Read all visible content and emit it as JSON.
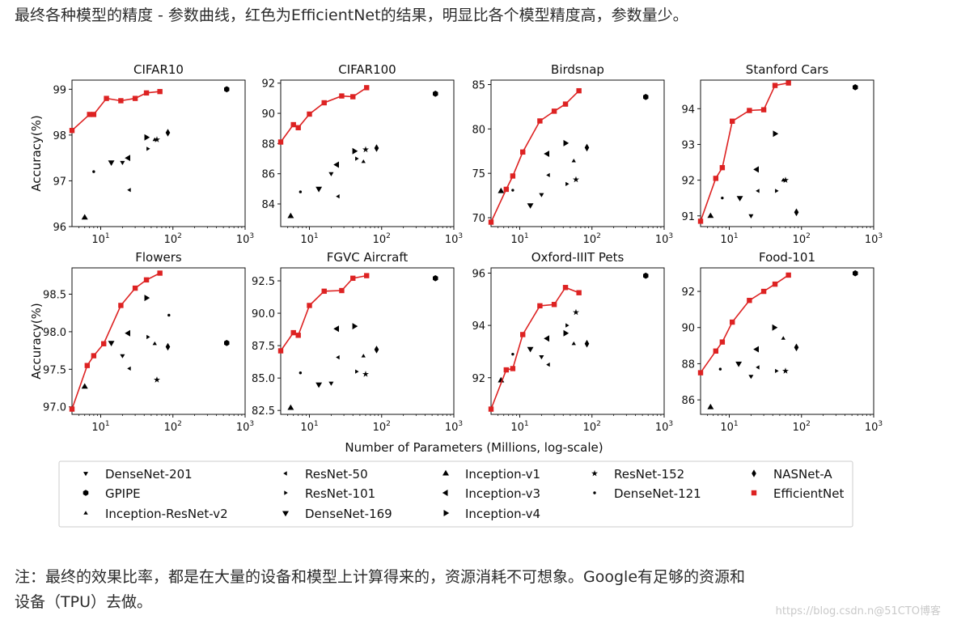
{
  "text": {
    "intro": "最终各种模型的精度 - 参数曲线，红色为EfficientNet的结果，明显比各个模型精度高，参数量少。",
    "note_line1": "注：最终的效果比率，都是在大量的设备和模型上计算得来的，资源消耗不可想象。Google有足够的资源和",
    "note_line2": "设备（TPU）去做。",
    "watermark": "https://blog.csdn.n@51CTO博客"
  },
  "figure": {
    "xlabel": "Number of Parameters (Millions, log-scale)",
    "ylabel": "Accuracy(%)",
    "x_tick_labels": [
      "10^1",
      "10^2",
      "10^3"
    ],
    "efficientnet_color": "#dd2222",
    "other_color": "#000000"
  },
  "legend": [
    {
      "name": "DenseNet-201",
      "marker": "tri_down"
    },
    {
      "name": "ResNet-50",
      "marker": "tri_left_small"
    },
    {
      "name": "Inception-v1",
      "marker": "tri_up"
    },
    {
      "name": "ResNet-152",
      "marker": "star"
    },
    {
      "name": "NASNet-A",
      "marker": "thin_diamond"
    },
    {
      "name": "GPIPE",
      "marker": "hexagon"
    },
    {
      "name": "ResNet-101",
      "marker": "tri_right_small"
    },
    {
      "name": "Inception-v3",
      "marker": "tri_left"
    },
    {
      "name": "DenseNet-121",
      "marker": "point"
    },
    {
      "name": "EfficientNet",
      "marker": "square"
    },
    {
      "name": "Inception-ResNet-v2",
      "marker": "tri_up_small"
    },
    {
      "name": "DenseNet-169",
      "marker": "tri_down_big"
    },
    {
      "name": "Inception-v4",
      "marker": "tri_right"
    }
  ],
  "chart_data": [
    {
      "type": "scatter",
      "title": "CIFAR10",
      "xscale": "log",
      "xlim": [
        4,
        1000
      ],
      "ylim": [
        96,
        99.2
      ],
      "yticks": [
        96,
        97,
        98,
        99
      ],
      "ytick_labels": [
        "96",
        "97",
        "98",
        "99"
      ],
      "efficientnet": [
        [
          4,
          98.1
        ],
        [
          7,
          98.45
        ],
        [
          8,
          98.45
        ],
        [
          12,
          98.8
        ],
        [
          19,
          98.75
        ],
        [
          30,
          98.8
        ],
        [
          43,
          98.92
        ],
        [
          66,
          98.95
        ]
      ],
      "others": [
        {
          "model": "DenseNet-201",
          "x": 20,
          "y": 97.4
        },
        {
          "model": "ResNet-50",
          "x": 25,
          "y": 96.8
        },
        {
          "model": "Inception-v1",
          "x": 6,
          "y": 96.2
        },
        {
          "model": "ResNet-152",
          "x": 60,
          "y": 97.9
        },
        {
          "model": "NASNet-A",
          "x": 85,
          "y": 98.05
        },
        {
          "model": "GPIPE",
          "x": 556,
          "y": 99.0
        },
        {
          "model": "ResNet-101",
          "x": 45,
          "y": 97.7
        },
        {
          "model": "Inception-v3",
          "x": 24,
          "y": 97.5
        },
        {
          "model": "DenseNet-121",
          "x": 8,
          "y": 97.2
        },
        {
          "model": "Inception-ResNet-v2",
          "x": 56,
          "y": 97.9
        },
        {
          "model": "DenseNet-169",
          "x": 14,
          "y": 97.4
        },
        {
          "model": "Inception-v4",
          "x": 43,
          "y": 97.95
        }
      ]
    },
    {
      "type": "scatter",
      "title": "CIFAR100",
      "xscale": "log",
      "xlim": [
        4,
        1000
      ],
      "ylim": [
        82.5,
        92.2
      ],
      "yticks": [
        84,
        86,
        88,
        90,
        92
      ],
      "ytick_labels": [
        "84",
        "86",
        "88",
        "90",
        "92"
      ],
      "efficientnet": [
        [
          4,
          88.1
        ],
        [
          6,
          89.25
        ],
        [
          7,
          89.05
        ],
        [
          10,
          89.95
        ],
        [
          16,
          90.7
        ],
        [
          28,
          91.15
        ],
        [
          40,
          91.1
        ],
        [
          62,
          91.7
        ]
      ],
      "others": [
        {
          "model": "DenseNet-201",
          "x": 20,
          "y": 86.0
        },
        {
          "model": "ResNet-50",
          "x": 25,
          "y": 84.5
        },
        {
          "model": "Inception-v1",
          "x": 5.5,
          "y": 83.2
        },
        {
          "model": "ResNet-152",
          "x": 60,
          "y": 87.6
        },
        {
          "model": "NASNet-A",
          "x": 85,
          "y": 87.7
        },
        {
          "model": "GPIPE",
          "x": 556,
          "y": 91.3
        },
        {
          "model": "ResNet-101",
          "x": 45,
          "y": 87.0
        },
        {
          "model": "Inception-v3",
          "x": 24,
          "y": 86.6
        },
        {
          "model": "DenseNet-121",
          "x": 7.5,
          "y": 84.8
        },
        {
          "model": "Inception-ResNet-v2",
          "x": 56,
          "y": 86.8
        },
        {
          "model": "DenseNet-169",
          "x": 13.5,
          "y": 85.0
        },
        {
          "model": "Inception-v4",
          "x": 42,
          "y": 87.5
        }
      ]
    },
    {
      "type": "scatter",
      "title": "Birdsnap",
      "xscale": "log",
      "xlim": [
        4,
        1000
      ],
      "ylim": [
        69,
        85.5
      ],
      "yticks": [
        70,
        75,
        80,
        85
      ],
      "ytick_labels": [
        "70",
        "75",
        "80",
        "85"
      ],
      "efficientnet": [
        [
          4,
          69.5
        ],
        [
          6.5,
          73.2
        ],
        [
          8,
          74.7
        ],
        [
          11,
          77.4
        ],
        [
          19,
          80.9
        ],
        [
          30,
          82.0
        ],
        [
          43,
          82.8
        ],
        [
          66,
          84.3
        ]
      ],
      "others": [
        {
          "model": "DenseNet-201",
          "x": 20,
          "y": 72.6
        },
        {
          "model": "ResNet-50",
          "x": 25,
          "y": 74.8
        },
        {
          "model": "Inception-v1",
          "x": 5.5,
          "y": 73.0
        },
        {
          "model": "ResNet-152",
          "x": 60,
          "y": 74.3
        },
        {
          "model": "NASNet-A",
          "x": 85,
          "y": 77.9
        },
        {
          "model": "GPIPE",
          "x": 556,
          "y": 83.6
        },
        {
          "model": "ResNet-101",
          "x": 45,
          "y": 73.8
        },
        {
          "model": "Inception-v3",
          "x": 24,
          "y": 77.2
        },
        {
          "model": "DenseNet-121",
          "x": 8,
          "y": 73.1
        },
        {
          "model": "Inception-ResNet-v2",
          "x": 56,
          "y": 76.4
        },
        {
          "model": "DenseNet-169",
          "x": 14,
          "y": 71.4
        },
        {
          "model": "Inception-v4",
          "x": 43,
          "y": 78.4
        }
      ]
    },
    {
      "type": "scatter",
      "title": "Stanford Cars",
      "xscale": "log",
      "xlim": [
        4,
        1000
      ],
      "ylim": [
        90.7,
        94.8
      ],
      "yticks": [
        91,
        92,
        93,
        94
      ],
      "ytick_labels": [
        "91",
        "92",
        "93",
        "94"
      ],
      "efficientnet": [
        [
          4,
          90.85
        ],
        [
          6.5,
          92.05
        ],
        [
          8,
          92.35
        ],
        [
          11,
          93.65
        ],
        [
          19,
          93.95
        ],
        [
          30,
          93.97
        ],
        [
          43,
          94.65
        ],
        [
          66,
          94.72
        ]
      ],
      "others": [
        {
          "model": "DenseNet-201",
          "x": 20,
          "y": 91.0
        },
        {
          "model": "ResNet-50",
          "x": 25,
          "y": 91.7
        },
        {
          "model": "Inception-v1",
          "x": 5.5,
          "y": 91.0
        },
        {
          "model": "ResNet-152",
          "x": 60,
          "y": 92.0
        },
        {
          "model": "NASNet-A",
          "x": 85,
          "y": 91.1
        },
        {
          "model": "GPIPE",
          "x": 556,
          "y": 94.6
        },
        {
          "model": "ResNet-101",
          "x": 45,
          "y": 91.7
        },
        {
          "model": "Inception-v3",
          "x": 24,
          "y": 92.3
        },
        {
          "model": "DenseNet-121",
          "x": 8,
          "y": 91.5
        },
        {
          "model": "Inception-ResNet-v2",
          "x": 56,
          "y": 92.0
        },
        {
          "model": "DenseNet-169",
          "x": 14,
          "y": 91.5
        },
        {
          "model": "Inception-v4",
          "x": 43,
          "y": 93.3
        }
      ]
    },
    {
      "type": "scatter",
      "title": "Flowers",
      "xscale": "log",
      "xlim": [
        4,
        1000
      ],
      "ylim": [
        96.9,
        98.85
      ],
      "yticks": [
        97.0,
        97.5,
        98.0,
        98.5
      ],
      "ytick_labels": [
        "97.0",
        "97.5",
        "98.0",
        "98.5"
      ],
      "efficientnet": [
        [
          4,
          96.97
        ],
        [
          6.5,
          97.55
        ],
        [
          8,
          97.68
        ],
        [
          11,
          97.84
        ],
        [
          19,
          98.35
        ],
        [
          30,
          98.58
        ],
        [
          43,
          98.69
        ],
        [
          66,
          98.78
        ]
      ],
      "others": [
        {
          "model": "DenseNet-201",
          "x": 20,
          "y": 97.68
        },
        {
          "model": "ResNet-50",
          "x": 25,
          "y": 97.51
        },
        {
          "model": "Inception-v1",
          "x": 6,
          "y": 97.27
        },
        {
          "model": "ResNet-152",
          "x": 60,
          "y": 97.36
        },
        {
          "model": "NASNet-A",
          "x": 85,
          "y": 97.8
        },
        {
          "model": "GPIPE",
          "x": 556,
          "y": 97.85
        },
        {
          "model": "ResNet-101",
          "x": 45,
          "y": 97.93
        },
        {
          "model": "Inception-v3",
          "x": 24,
          "y": 97.98
        },
        {
          "model": "DenseNet-121",
          "x": 88,
          "y": 98.22
        },
        {
          "model": "Inception-ResNet-v2",
          "x": 56,
          "y": 97.84
        },
        {
          "model": "DenseNet-169",
          "x": 14,
          "y": 97.85
        },
        {
          "model": "Inception-v4",
          "x": 43,
          "y": 98.45
        }
      ]
    },
    {
      "type": "scatter",
      "title": "FGVC Aircraft",
      "xscale": "log",
      "xlim": [
        4,
        1000
      ],
      "ylim": [
        82.2,
        93.5
      ],
      "yticks": [
        82.5,
        85.0,
        87.5,
        90.0,
        92.5
      ],
      "ytick_labels": [
        "82.5",
        "85.0",
        "87.5",
        "90.0",
        "92.5"
      ],
      "efficientnet": [
        [
          4,
          87.1
        ],
        [
          6,
          88.5
        ],
        [
          7,
          88.3
        ],
        [
          10,
          90.6
        ],
        [
          16,
          91.7
        ],
        [
          28,
          91.75
        ],
        [
          40,
          92.7
        ],
        [
          62,
          92.9
        ]
      ],
      "others": [
        {
          "model": "DenseNet-201",
          "x": 20,
          "y": 84.6
        },
        {
          "model": "ResNet-50",
          "x": 25,
          "y": 86.6
        },
        {
          "model": "Inception-v1",
          "x": 5.5,
          "y": 82.7
        },
        {
          "model": "ResNet-152",
          "x": 60,
          "y": 85.3
        },
        {
          "model": "NASNet-A",
          "x": 85,
          "y": 87.2
        },
        {
          "model": "GPIPE",
          "x": 556,
          "y": 92.7
        },
        {
          "model": "ResNet-101",
          "x": 45,
          "y": 85.5
        },
        {
          "model": "Inception-v3",
          "x": 24,
          "y": 88.8
        },
        {
          "model": "DenseNet-121",
          "x": 7.5,
          "y": 85.4
        },
        {
          "model": "Inception-ResNet-v2",
          "x": 56,
          "y": 86.7
        },
        {
          "model": "DenseNet-169",
          "x": 13.5,
          "y": 84.5
        },
        {
          "model": "Inception-v4",
          "x": 42,
          "y": 89.0
        }
      ]
    },
    {
      "type": "scatter",
      "title": "Oxford-IIIT Pets",
      "xscale": "log",
      "xlim": [
        4,
        1000
      ],
      "ylim": [
        90.6,
        96.2
      ],
      "yticks": [
        92,
        94,
        96
      ],
      "ytick_labels": [
        "92",
        "94",
        "96"
      ],
      "efficientnet": [
        [
          4,
          90.8
        ],
        [
          6.5,
          92.3
        ],
        [
          8,
          92.35
        ],
        [
          11,
          93.65
        ],
        [
          19,
          94.75
        ],
        [
          30,
          94.8
        ],
        [
          43,
          95.45
        ],
        [
          66,
          95.25
        ]
      ],
      "others": [
        {
          "model": "DenseNet-201",
          "x": 20,
          "y": 92.8
        },
        {
          "model": "ResNet-50",
          "x": 25,
          "y": 92.5
        },
        {
          "model": "Inception-v1",
          "x": 5.5,
          "y": 91.9
        },
        {
          "model": "ResNet-152",
          "x": 60,
          "y": 94.5
        },
        {
          "model": "NASNet-A",
          "x": 85,
          "y": 93.3
        },
        {
          "model": "GPIPE",
          "x": 556,
          "y": 95.9
        },
        {
          "model": "ResNet-101",
          "x": 45,
          "y": 94.0
        },
        {
          "model": "Inception-v3",
          "x": 24,
          "y": 93.5
        },
        {
          "model": "DenseNet-121",
          "x": 8,
          "y": 92.9
        },
        {
          "model": "Inception-ResNet-v2",
          "x": 56,
          "y": 93.3
        },
        {
          "model": "DenseNet-169",
          "x": 14,
          "y": 93.1
        },
        {
          "model": "Inception-v4",
          "x": 43,
          "y": 93.7
        }
      ]
    },
    {
      "type": "scatter",
      "title": "Food-101",
      "xscale": "log",
      "xlim": [
        4,
        1000
      ],
      "ylim": [
        85.2,
        93.3
      ],
      "yticks": [
        86,
        88,
        90,
        92
      ],
      "ytick_labels": [
        "86",
        "88",
        "90",
        "92"
      ],
      "efficientnet": [
        [
          4,
          87.5
        ],
        [
          6.5,
          88.7
        ],
        [
          8,
          89.2
        ],
        [
          11,
          90.3
        ],
        [
          19,
          91.5
        ],
        [
          30,
          92.0
        ],
        [
          43,
          92.4
        ],
        [
          66,
          92.9
        ]
      ],
      "others": [
        {
          "model": "DenseNet-201",
          "x": 20,
          "y": 87.3
        },
        {
          "model": "ResNet-50",
          "x": 25,
          "y": 87.8
        },
        {
          "model": "Inception-v1",
          "x": 5.5,
          "y": 85.6
        },
        {
          "model": "ResNet-152",
          "x": 60,
          "y": 87.6
        },
        {
          "model": "NASNet-A",
          "x": 85,
          "y": 88.9
        },
        {
          "model": "GPIPE",
          "x": 556,
          "y": 93.0
        },
        {
          "model": "ResNet-101",
          "x": 45,
          "y": 87.6
        },
        {
          "model": "Inception-v3",
          "x": 24,
          "y": 88.8
        },
        {
          "model": "DenseNet-121",
          "x": 7.5,
          "y": 87.7
        },
        {
          "model": "Inception-ResNet-v2",
          "x": 56,
          "y": 89.4
        },
        {
          "model": "DenseNet-169",
          "x": 13.5,
          "y": 88.0
        },
        {
          "model": "Inception-v4",
          "x": 42,
          "y": 90.0
        }
      ]
    }
  ]
}
